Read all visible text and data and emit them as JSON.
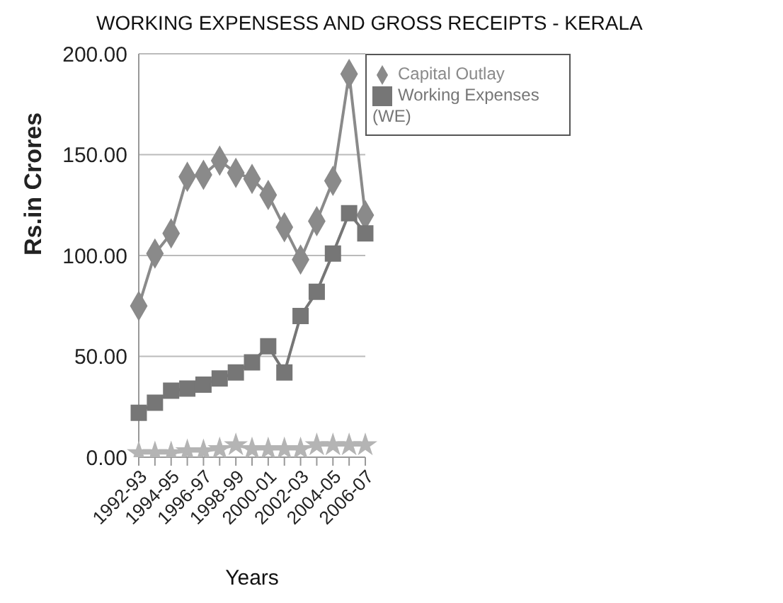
{
  "chart_data": {
    "type": "line",
    "title": "WORKING EXPENSESS AND GROSS RECEIPTS - KERALA",
    "xlabel": "Years",
    "ylabel": "Rs.in Crores",
    "categories": [
      "1992-93",
      null,
      "1994-95",
      null,
      "1996-97",
      null,
      "1998-99",
      null,
      "2000-01",
      null,
      "2002-03",
      null,
      "2004-05",
      null,
      "2006-07"
    ],
    "series": [
      {
        "name": "Capital Outlay",
        "color": "#8a8a8a",
        "marker": "diamond",
        "values": [
          75,
          101,
          111,
          139,
          140,
          147,
          141,
          138,
          130,
          114,
          98,
          117,
          137,
          190,
          120
        ]
      },
      {
        "name": "Working Expenses (WE)",
        "color": "#767676",
        "marker": "square",
        "values": [
          22,
          27,
          33,
          34,
          36,
          39,
          42,
          47,
          55,
          42,
          70,
          82,
          101,
          121,
          111
        ]
      },
      {
        "color": "#b4b4b4",
        "marker": "star",
        "values": [
          2,
          2,
          2,
          3,
          3,
          4,
          6,
          4,
          4,
          4,
          4,
          6,
          6,
          6,
          6
        ]
      }
    ],
    "ylim": [
      0,
      200
    ],
    "yticks": [
      {
        "value": 0,
        "label": "0.00"
      },
      {
        "value": 50,
        "label": "50.00"
      },
      {
        "value": 100,
        "label": "100.00"
      },
      {
        "value": 150,
        "label": "150.00"
      },
      {
        "value": 200,
        "label": "200.00"
      }
    ],
    "grid": "y",
    "legend": "top right",
    "line_style": "solid"
  }
}
